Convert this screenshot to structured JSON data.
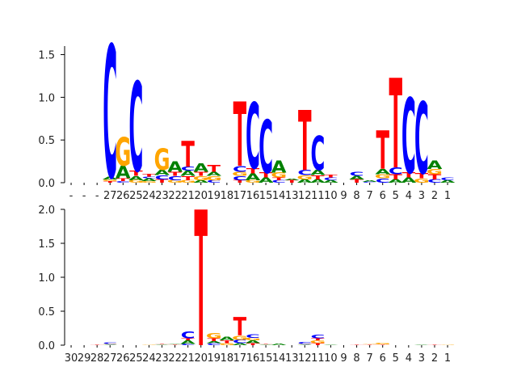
{
  "chart_data": [
    {
      "type": "sequence-logo",
      "ylim": [
        0,
        1.6
      ],
      "yticks": [
        "0.0",
        "0.5",
        "1.0",
        "1.5"
      ],
      "ytick_values": [
        0,
        0.5,
        1.0,
        1.5
      ],
      "grid": false,
      "x_tick_labels": [
        "-",
        "-",
        "-",
        "27",
        "26",
        "25",
        "24",
        "23",
        "22",
        "21",
        "20",
        "19",
        "18",
        "17",
        "16",
        "15",
        "14",
        "13",
        "12",
        "11",
        "10",
        "9",
        "8",
        "7",
        "6",
        "5",
        "4",
        "3",
        "2",
        "1"
      ],
      "colors": {
        "A": "#008000",
        "C": "#0000ff",
        "G": "#ffa500",
        "T": "#ff0000"
      },
      "columns": [
        [],
        [],
        [],
        [
          [
            "T",
            0.02
          ],
          [
            "G",
            0.02
          ],
          [
            "A",
            0.03
          ],
          [
            "C",
            1.55
          ]
        ],
        [
          [
            "C",
            0.02
          ],
          [
            "T",
            0.03
          ],
          [
            "A",
            0.15
          ],
          [
            "G",
            0.33
          ]
        ],
        [
          [
            "G",
            0.03
          ],
          [
            "A",
            0.05
          ],
          [
            "T",
            0.06
          ],
          [
            "C",
            1.05
          ]
        ],
        [
          [
            "G",
            0.02
          ],
          [
            "A",
            0.03
          ],
          [
            "C",
            0.02
          ],
          [
            "T",
            0.03
          ]
        ],
        [
          [
            "T",
            0.04
          ],
          [
            "C",
            0.05
          ],
          [
            "A",
            0.06
          ],
          [
            "G",
            0.25
          ]
        ],
        [
          [
            "G",
            0.03
          ],
          [
            "C",
            0.05
          ],
          [
            "T",
            0.05
          ],
          [
            "A",
            0.12
          ]
        ],
        [
          [
            "G",
            0.03
          ],
          [
            "T",
            0.05
          ],
          [
            "A",
            0.06
          ],
          [
            "C",
            0.05
          ],
          [
            "T",
            0.3
          ]
        ],
        [
          [
            "A",
            0.03
          ],
          [
            "G",
            0.05
          ],
          [
            "T",
            0.05
          ],
          [
            "A",
            0.1
          ]
        ],
        [
          [
            "C",
            0.03
          ],
          [
            "G",
            0.05
          ],
          [
            "A",
            0.05
          ],
          [
            "T",
            0.08
          ]
        ],
        [],
        [
          [
            "T",
            0.03
          ],
          [
            "C",
            0.05
          ],
          [
            "G",
            0.05
          ],
          [
            "C",
            0.07
          ],
          [
            "T",
            0.75
          ]
        ],
        [
          [
            "G",
            0.03
          ],
          [
            "A",
            0.08
          ],
          [
            "T",
            0.06
          ],
          [
            "C",
            0.77
          ]
        ],
        [
          [
            "A",
            0.06
          ],
          [
            "T",
            0.06
          ],
          [
            "C",
            0.62
          ]
        ],
        [
          [
            "C",
            0.03
          ],
          [
            "T",
            0.03
          ],
          [
            "G",
            0.06
          ],
          [
            "A",
            0.14
          ]
        ],
        [
          [
            "T",
            0.03
          ],
          [
            "A",
            0.02
          ]
        ],
        [
          [
            "A",
            0.04
          ],
          [
            "G",
            0.05
          ],
          [
            "C",
            0.06
          ],
          [
            "T",
            0.7
          ]
        ],
        [
          [
            "A",
            0.04
          ],
          [
            "T",
            0.05
          ],
          [
            "A",
            0.06
          ],
          [
            "C",
            0.4
          ]
        ],
        [
          [
            "A",
            0.03
          ],
          [
            "C",
            0.03
          ],
          [
            "T",
            0.03
          ]
        ],
        [],
        [
          [
            "T",
            0.04
          ],
          [
            "A",
            0.04
          ],
          [
            "C",
            0.05
          ]
        ],
        [
          [
            "C",
            0.01
          ],
          [
            "A",
            0.02
          ]
        ],
        [
          [
            "C",
            0.05
          ],
          [
            "G",
            0.05
          ],
          [
            "A",
            0.06
          ],
          [
            "T",
            0.45
          ]
        ],
        [
          [
            "A",
            0.04
          ],
          [
            "T",
            0.06
          ],
          [
            "C",
            0.08
          ],
          [
            "T",
            1.05
          ]
        ],
        [
          [
            "A",
            0.06
          ],
          [
            "T",
            0.06
          ],
          [
            "C",
            0.88
          ]
        ],
        [
          [
            "G",
            0.05
          ],
          [
            "T",
            0.06
          ],
          [
            "C",
            0.84
          ]
        ],
        [
          [
            "C",
            0.04
          ],
          [
            "T",
            0.06
          ],
          [
            "G",
            0.06
          ],
          [
            "A",
            0.1
          ]
        ],
        [
          [
            "A",
            0.03
          ],
          [
            "C",
            0.03
          ]
        ]
      ]
    },
    {
      "type": "sequence-logo",
      "ylim": [
        0,
        2.0
      ],
      "yticks": [
        "0.0",
        "0.5",
        "1.0",
        "1.5",
        "2.0"
      ],
      "ytick_values": [
        0,
        0.5,
        1.0,
        1.5,
        2.0
      ],
      "grid": false,
      "x_tick_labels": [
        "30",
        "29",
        "28",
        "27",
        "26",
        "25",
        "24",
        "23",
        "22",
        "21",
        "20",
        "19",
        "18",
        "17",
        "16",
        "15",
        "14",
        "13",
        "12",
        "11",
        "10",
        "9",
        "8",
        "7",
        "6",
        "5",
        "4",
        "3",
        "2",
        "1"
      ],
      "colors": {
        "A": "#008000",
        "C": "#0000ff",
        "G": "#ffa500",
        "T": "#ff0000"
      },
      "columns": [
        [],
        [],
        [
          [
            "T",
            0.01
          ]
        ],
        [
          [
            "A",
            0.01
          ],
          [
            "G",
            0.01
          ],
          [
            "C",
            0.02
          ]
        ],
        [],
        [],
        [
          [
            "G",
            0.01
          ]
        ],
        [
          [
            "A",
            0.01
          ],
          [
            "T",
            0.01
          ]
        ],
        [
          [
            "T",
            0.01
          ],
          [
            "A",
            0.01
          ]
        ],
        [
          [
            "C",
            0.02
          ],
          [
            "A",
            0.05
          ],
          [
            "T",
            0.03
          ],
          [
            "C",
            0.1
          ]
        ],
        [
          [
            "T",
            2.0
          ]
        ],
        [
          [
            "C",
            0.03
          ],
          [
            "A",
            0.03
          ],
          [
            "T",
            0.04
          ],
          [
            "G",
            0.08
          ]
        ],
        [
          [
            "G",
            0.03
          ],
          [
            "T",
            0.04
          ],
          [
            "A",
            0.05
          ]
        ],
        [
          [
            "A",
            0.03
          ],
          [
            "C",
            0.05
          ],
          [
            "G",
            0.06
          ],
          [
            "T",
            0.27
          ]
        ],
        [
          [
            "T",
            0.03
          ],
          [
            "A",
            0.04
          ],
          [
            "G",
            0.04
          ],
          [
            "C",
            0.05
          ]
        ],
        [
          [
            "A",
            0.01
          ],
          [
            "T",
            0.01
          ]
        ],
        [
          [
            "A",
            0.02
          ]
        ],
        [],
        [
          [
            "A",
            0.01
          ],
          [
            "G",
            0.01
          ],
          [
            "C",
            0.03
          ]
        ],
        [
          [
            "T",
            0.03
          ],
          [
            "G",
            0.04
          ],
          [
            "T",
            0.03
          ],
          [
            "C",
            0.05
          ]
        ],
        [
          [
            "A",
            0.01
          ]
        ],
        [],
        [
          [
            "T",
            0.01
          ]
        ],
        [
          [
            "T",
            0.01
          ],
          [
            "G",
            0.01
          ]
        ],
        [
          [
            "T",
            0.01
          ],
          [
            "G",
            0.02
          ]
        ],
        [],
        [],
        [
          [
            "A",
            0.01
          ]
        ],
        [
          [
            "T",
            0.01
          ]
        ],
        [
          [
            "G",
            0.01
          ]
        ]
      ]
    }
  ]
}
